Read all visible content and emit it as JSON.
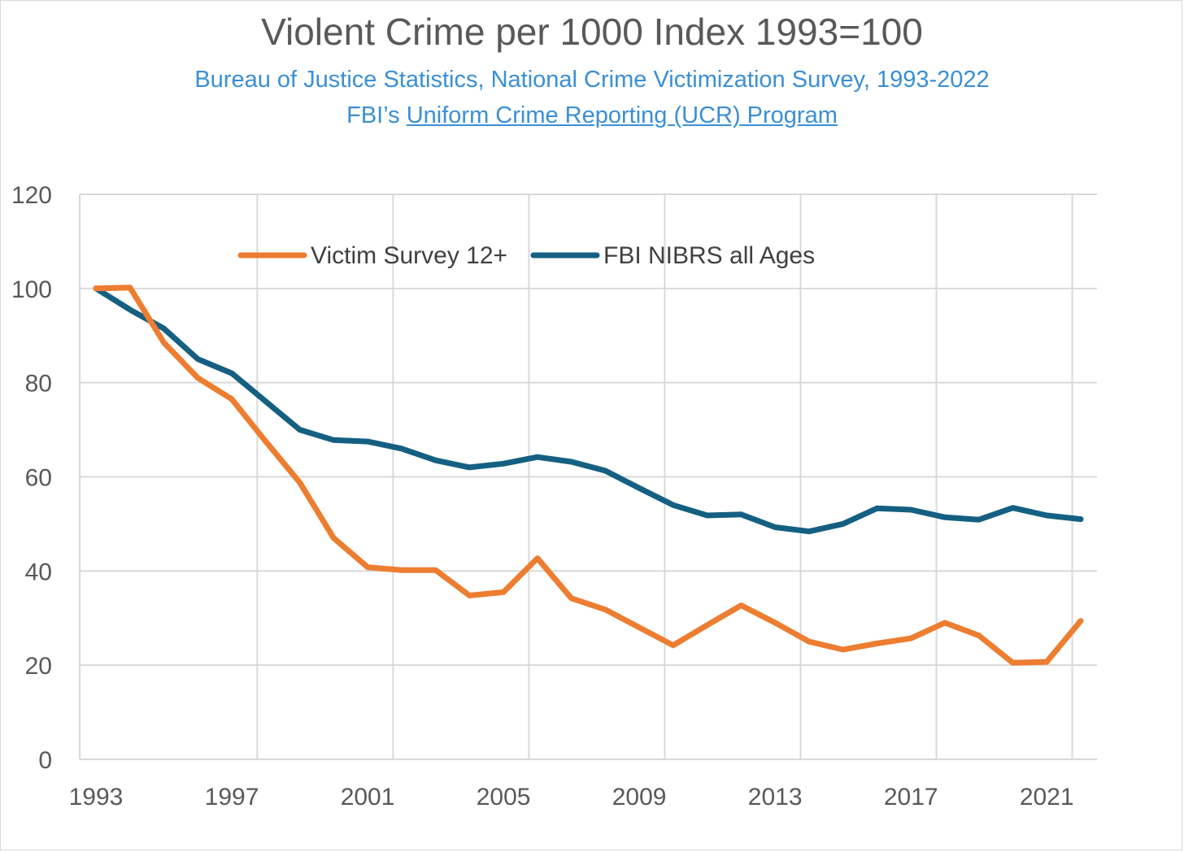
{
  "chart_data": {
    "type": "line",
    "title": "Violent Crime per 1000 Index 1993=100",
    "subtitle_line1": "Bureau of Justice Statistics, National Crime Victimization Survey, 1993-2022",
    "subtitle_line2_prefix": "FBI’s ",
    "subtitle_line2_link": "Uniform Crime Reporting (UCR) Program",
    "xlabel": "",
    "ylabel": "",
    "xlim": [
      1993,
      2022
    ],
    "ylim": [
      0,
      120
    ],
    "yticks": [
      0,
      20,
      40,
      60,
      80,
      100,
      120
    ],
    "xticks": [
      1993,
      1997,
      2001,
      2005,
      2009,
      2013,
      2017,
      2021
    ],
    "grid": true,
    "legend_position": "top-center",
    "x": [
      1993,
      1994,
      1995,
      1996,
      1997,
      1998,
      1999,
      2000,
      2001,
      2002,
      2003,
      2004,
      2005,
      2006,
      2007,
      2008,
      2009,
      2010,
      2011,
      2012,
      2013,
      2014,
      2015,
      2016,
      2017,
      2018,
      2019,
      2020,
      2021,
      2022
    ],
    "series": [
      {
        "name": "Victim Survey 12+",
        "color": "#ed7d31",
        "values": [
          100,
          100.2,
          88.5,
          81,
          76.5,
          67.5,
          58.8,
          47,
          40.8,
          40.2,
          40.2,
          34.8,
          35.5,
          42.7,
          34.2,
          31.8,
          28,
          24.2,
          28.5,
          32.7,
          29,
          25,
          23.3,
          24.6,
          25.7,
          29,
          26.3,
          20.5,
          20.7,
          29.4
        ]
      },
      {
        "name": "FBI NIBRS all Ages",
        "color": "#156082",
        "values": [
          100,
          95.5,
          91.5,
          85,
          82,
          76,
          70,
          67.8,
          67.5,
          66,
          63.5,
          62,
          62.8,
          64.2,
          63.2,
          61.3,
          57.6,
          54,
          51.8,
          52,
          49.3,
          48.4,
          50,
          53.3,
          53,
          51.4,
          50.9,
          53.4,
          51.8,
          51
        ]
      }
    ]
  }
}
